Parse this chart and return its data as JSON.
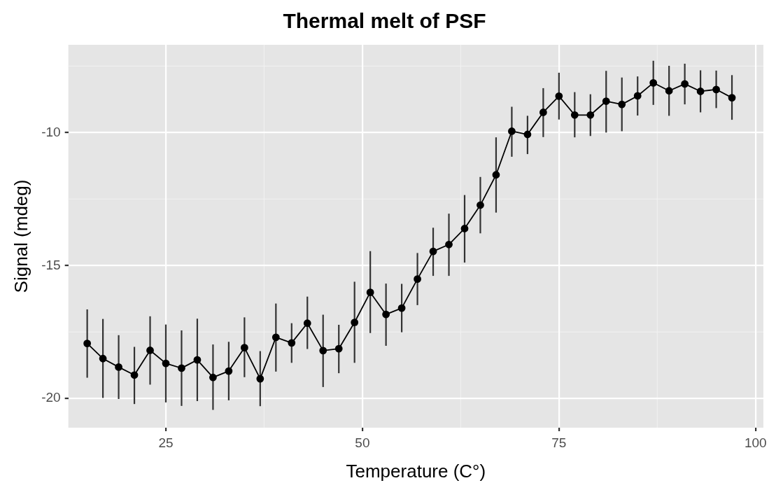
{
  "chart_data": {
    "type": "line",
    "title": "Thermal melt of PSF",
    "xlabel": "Temperature (C°)",
    "ylabel": "Signal (mdeg)",
    "x": [
      15,
      17,
      19,
      21,
      23,
      25,
      27,
      29,
      31,
      33,
      35,
      37,
      39,
      41,
      43,
      45,
      47,
      49,
      51,
      53,
      55,
      57,
      59,
      61,
      63,
      65,
      67,
      69,
      71,
      73,
      75,
      77,
      79,
      81,
      83,
      85,
      87,
      89,
      91,
      93,
      95,
      97
    ],
    "values": [
      -17.93,
      -18.5,
      -18.82,
      -19.12,
      -18.19,
      -18.68,
      -18.86,
      -18.55,
      -19.21,
      -18.97,
      -18.09,
      -19.26,
      -17.7,
      -17.91,
      -17.17,
      -18.2,
      -18.13,
      -17.14,
      -16.01,
      -16.84,
      -16.6,
      -15.51,
      -14.47,
      -14.21,
      -13.61,
      -12.73,
      -11.59,
      -9.95,
      -10.07,
      -9.24,
      -8.63,
      -9.34,
      -9.34,
      -8.82,
      -8.94,
      -8.62,
      -8.13,
      -8.43,
      -8.17,
      -8.45,
      -8.38,
      -8.69
    ],
    "errors": [
      [
        -19.22,
        -16.65
      ],
      [
        -19.98,
        -17.01
      ],
      [
        -20.02,
        -17.62
      ],
      [
        -20.21,
        -18.06
      ],
      [
        -19.48,
        -16.91
      ],
      [
        -20.15,
        -17.22
      ],
      [
        -20.28,
        -17.44
      ],
      [
        -20.1,
        -17.0
      ],
      [
        -20.43,
        -17.97
      ],
      [
        -20.07,
        -17.87
      ],
      [
        -19.2,
        -16.95
      ],
      [
        -20.29,
        -18.22
      ],
      [
        -18.99,
        -16.43
      ],
      [
        -18.66,
        -17.17
      ],
      [
        -18.14,
        -16.17
      ],
      [
        -19.57,
        -16.85
      ],
      [
        -19.05,
        -17.23
      ],
      [
        -18.66,
        -15.61
      ],
      [
        -17.54,
        -14.46
      ],
      [
        -18.02,
        -15.68
      ],
      [
        -17.51,
        -15.69
      ],
      [
        -16.49,
        -14.53
      ],
      [
        -15.39,
        -13.58
      ],
      [
        -15.39,
        -13.05
      ],
      [
        -14.89,
        -12.35
      ],
      [
        -13.79,
        -11.67
      ],
      [
        -13.01,
        -10.18
      ],
      [
        -10.91,
        -9.03
      ],
      [
        -10.81,
        -9.37
      ],
      [
        -10.17,
        -8.33
      ],
      [
        -9.51,
        -7.75
      ],
      [
        -10.18,
        -8.48
      ],
      [
        -10.13,
        -8.56
      ],
      [
        -10.0,
        -7.68
      ],
      [
        -9.95,
        -7.93
      ],
      [
        -9.36,
        -7.89
      ],
      [
        -8.96,
        -7.3
      ],
      [
        -9.37,
        -7.49
      ],
      [
        -8.94,
        -7.41
      ],
      [
        -9.24,
        -7.66
      ],
      [
        -9.08,
        -7.67
      ],
      [
        -9.52,
        -7.84
      ]
    ],
    "color": "#000000",
    "marker": "circle",
    "line_style": "solid",
    "xlim": [
      12.6,
      101
    ],
    "ylim": [
      -21.1,
      -6.7
    ],
    "xticks": [
      25,
      50,
      75,
      100
    ],
    "yticks": [
      -20,
      -15,
      -10
    ],
    "grid": true,
    "legend": false
  }
}
